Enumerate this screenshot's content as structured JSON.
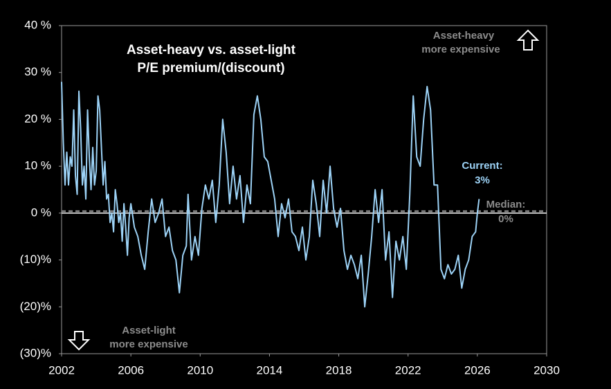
{
  "chart_data": {
    "type": "line",
    "title": [
      "Asset-heavy vs. asset-light",
      "P/E premium/(discount)"
    ],
    "color": "#9dd3f7",
    "x": [
      2002.0,
      2002.1,
      2002.2,
      2002.3,
      2002.4,
      2002.5,
      2002.6,
      2002.7,
      2002.8,
      2002.9,
      2003.0,
      2003.1,
      2003.2,
      2003.3,
      2003.4,
      2003.5,
      2003.6,
      2003.7,
      2003.8,
      2003.9,
      2004.0,
      2004.1,
      2004.2,
      2004.3,
      2004.4,
      2004.5,
      2004.6,
      2004.7,
      2004.8,
      2004.9,
      2005.0,
      2005.1,
      2005.2,
      2005.3,
      2005.4,
      2005.5,
      2005.6,
      2005.7,
      2005.8,
      2005.9,
      2006.0,
      2006.2,
      2006.4,
      2006.6,
      2006.8,
      2007.0,
      2007.2,
      2007.4,
      2007.6,
      2007.8,
      2008.0,
      2008.2,
      2008.4,
      2008.6,
      2008.8,
      2009.0,
      2009.2,
      2009.3,
      2009.5,
      2009.7,
      2009.9,
      2010.1,
      2010.3,
      2010.5,
      2010.7,
      2010.9,
      2011.1,
      2011.3,
      2011.5,
      2011.7,
      2011.9,
      2012.1,
      2012.3,
      2012.5,
      2012.7,
      2012.9,
      2013.1,
      2013.3,
      2013.5,
      2013.7,
      2013.9,
      2014.1,
      2014.3,
      2014.5,
      2014.7,
      2014.9,
      2015.1,
      2015.3,
      2015.5,
      2015.7,
      2015.9,
      2016.1,
      2016.3,
      2016.5,
      2016.7,
      2016.9,
      2017.1,
      2017.3,
      2017.5,
      2017.7,
      2017.9,
      2018.1,
      2018.3,
      2018.5,
      2018.7,
      2018.9,
      2019.1,
      2019.3,
      2019.5,
      2019.7,
      2019.9,
      2020.1,
      2020.3,
      2020.5,
      2020.7,
      2020.9,
      2021.1,
      2021.3,
      2021.5,
      2021.7,
      2021.9,
      2022.1,
      2022.3,
      2022.5,
      2022.7,
      2022.9,
      2023.1,
      2023.3,
      2023.5,
      2023.7,
      2023.9,
      2024.1,
      2024.3,
      2024.5,
      2024.7,
      2024.9,
      2025.1,
      2025.3,
      2025.5,
      2025.7,
      2025.9,
      2026.0,
      2026.1
    ],
    "values": [
      28,
      15,
      6,
      13,
      6,
      12,
      10,
      22,
      8,
      4,
      26,
      18,
      6,
      10,
      3,
      22,
      12,
      5,
      14,
      6,
      9,
      25,
      22,
      14,
      6,
      11,
      3,
      4,
      -2,
      0,
      -4,
      5,
      2,
      -2,
      0,
      -6,
      2,
      -3,
      -9,
      -1,
      2,
      -3,
      -5,
      -9,
      -12,
      -4,
      3,
      -2,
      0,
      3,
      -5,
      -3,
      -8,
      -10,
      -17,
      -9,
      -7,
      4,
      -10,
      -5,
      -9,
      1,
      6,
      3,
      7,
      -2,
      6,
      20,
      13,
      2,
      10,
      3,
      8,
      -2,
      6,
      2,
      21,
      25,
      20,
      12,
      11,
      7,
      3,
      -5,
      2,
      -1,
      3,
      -4,
      -5,
      -8,
      -3,
      -10,
      -5,
      7,
      2,
      -5,
      7,
      0,
      10,
      1,
      -3,
      1,
      -8,
      -12,
      -9,
      -11,
      -14,
      -9,
      -20,
      -13,
      -5,
      5,
      -2,
      5,
      -10,
      -4,
      -18,
      -6,
      -10,
      -5,
      -12,
      4,
      25,
      12,
      10,
      20,
      27,
      22,
      6,
      6,
      -12,
      -14,
      -11,
      -13,
      -12,
      -9,
      -16,
      -12,
      -10,
      -5,
      -4,
      0,
      3
    ],
    "xlim": [
      2002,
      2030
    ],
    "xticks": [
      2002,
      2006,
      2010,
      2014,
      2018,
      2022,
      2026,
      2030
    ],
    "ylim": [
      -30,
      40
    ],
    "yticks": [
      {
        "value": 40,
        "label": "40 %"
      },
      {
        "value": 30,
        "label": "30 %"
      },
      {
        "value": 20,
        "label": "20 %"
      },
      {
        "value": 10,
        "label": "10 %"
      },
      {
        "value": 0,
        "label": "0 %"
      },
      {
        "value": -10,
        "label": "(10)%"
      },
      {
        "value": -20,
        "label": "(20)%"
      },
      {
        "value": -30,
        "label": "(30)%"
      }
    ],
    "median": {
      "value": 0.4,
      "label": [
        "Median:",
        "0%"
      ]
    },
    "current_label": [
      "Current:",
      "3%"
    ],
    "annotations": [
      [
        "Asset-heavy",
        "more expensive"
      ],
      [
        "Asset-light",
        "more expensive"
      ]
    ]
  }
}
